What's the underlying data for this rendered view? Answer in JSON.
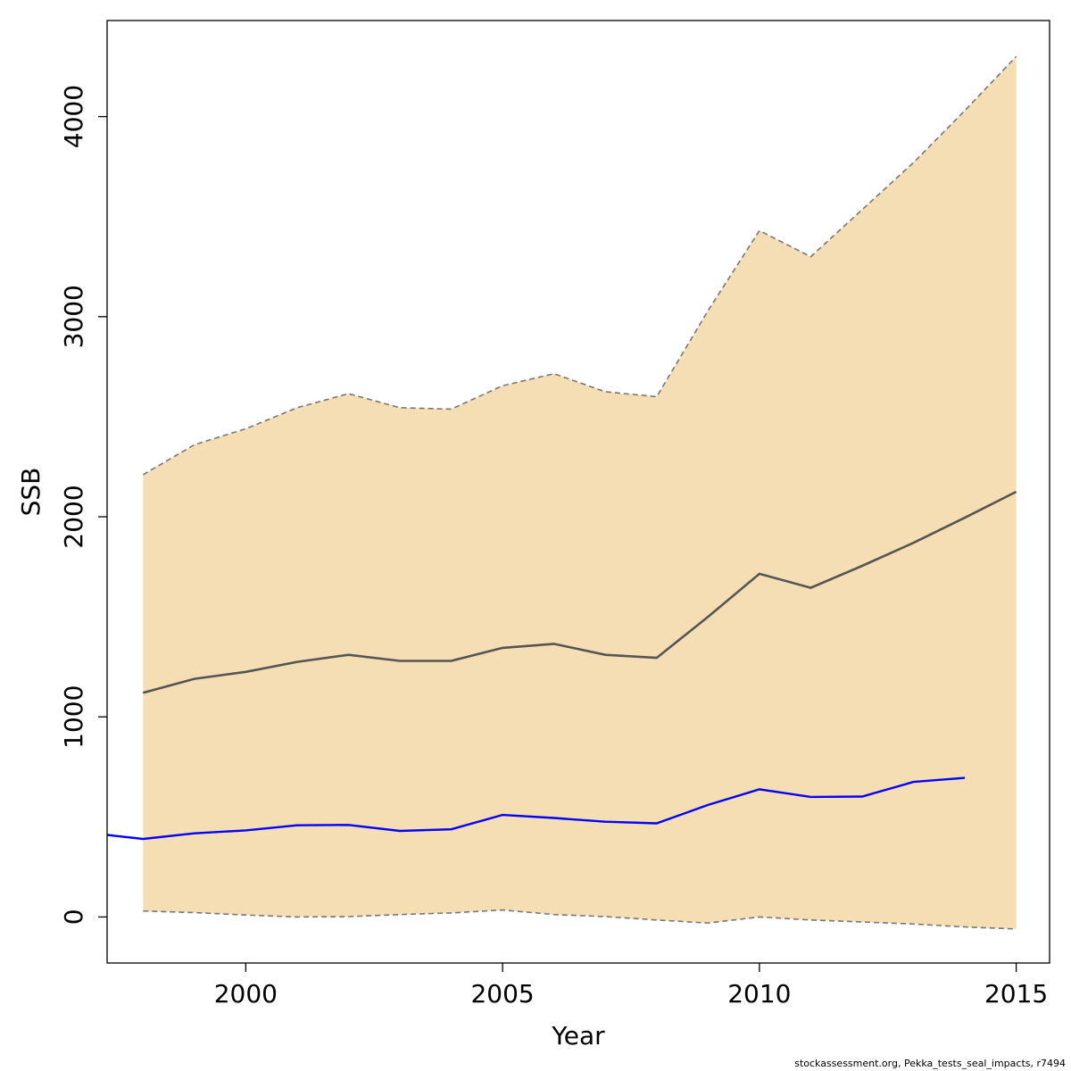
{
  "chart_data": {
    "type": "line",
    "title": "",
    "xlabel": "Year",
    "ylabel": "SSB",
    "xlim": [
      1997.3,
      2015.65
    ],
    "ylim": [
      -230,
      4480
    ],
    "x_ticks": [
      2000,
      2005,
      2010,
      2015
    ],
    "y_ticks": [
      0,
      1000,
      2000,
      3000,
      4000
    ],
    "grid": false,
    "legend": "none",
    "colors": {
      "band": "#f5deb3",
      "median": "#555555",
      "bounds": "#777777",
      "observed": "#0000ff"
    },
    "band": {
      "x": [
        1998,
        1999,
        2000,
        2001,
        2002,
        2003,
        2004,
        2005,
        2006,
        2007,
        2008,
        2009,
        2010,
        2011,
        2012,
        2013,
        2014,
        2015
      ],
      "upper": [
        2210,
        2360,
        2440,
        2545,
        2615,
        2545,
        2538,
        2655,
        2715,
        2625,
        2600,
        3030,
        3430,
        3300,
        3535,
        3770,
        4030,
        4300
      ],
      "lower": [
        30,
        22,
        10,
        0,
        2,
        12,
        20,
        35,
        12,
        2,
        -15,
        -30,
        0,
        -15,
        -25,
        -35,
        -50,
        -60
      ]
    },
    "series": [
      {
        "x": [
          1998,
          1999,
          2000,
          2001,
          2002,
          2003,
          2004,
          2005,
          2006,
          2007,
          2008,
          2009,
          2010,
          2011,
          2012,
          2013,
          2014,
          2015
        ],
        "values": [
          1120,
          1190,
          1225,
          1275,
          1310,
          1280,
          1280,
          1345,
          1365,
          1310,
          1295,
          1500,
          1715,
          1645,
          1755,
          1870,
          1995,
          2125
        ]
      },
      {
        "x": [
          1997.3,
          1998,
          1999,
          2000,
          2001,
          2002,
          2003,
          2004,
          2005,
          2006,
          2007,
          2008,
          2009,
          2010,
          2011,
          2012,
          2013,
          2014
        ],
        "values": [
          410,
          390,
          418,
          433,
          458,
          460,
          430,
          438,
          510,
          495,
          476,
          468,
          560,
          638,
          600,
          602,
          675,
          695
        ]
      }
    ]
  },
  "footer": "stockassessment.org, Pekka_tests_seal_impacts, r7494"
}
